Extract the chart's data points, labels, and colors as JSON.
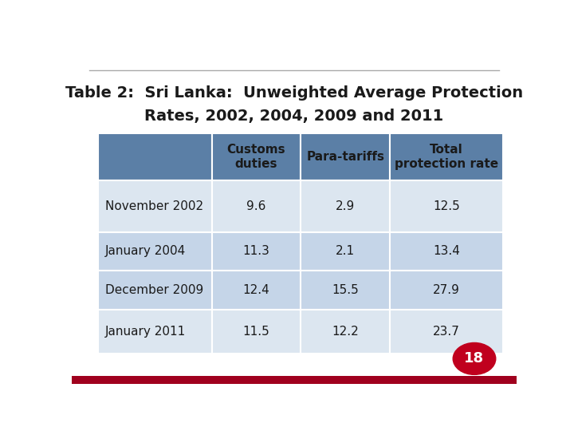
{
  "title_line1": "Table 2:  Sri Lanka:  Unweighted Average Protection",
  "title_line2": "Rates, 2002, 2004, 2009 and 2011",
  "col_headers": [
    "Customs\nduties",
    "Para-tariffs",
    "Total\nprotection rate"
  ],
  "row_labels": [
    "November 2002",
    "January 2004",
    "December 2009",
    "January 2011"
  ],
  "data": [
    [
      "9.6",
      "2.9",
      "12.5"
    ],
    [
      "11.3",
      "2.1",
      "13.4"
    ],
    [
      "12.4",
      "15.5",
      "27.9"
    ],
    [
      "11.5",
      "12.2",
      "23.7"
    ]
  ],
  "header_bg": "#5b7fa6",
  "row_bg_odd": "#dce6f0",
  "row_bg_even": "#c5d5e8",
  "text_color": "#1a1a1a",
  "title_color": "#1a1a1a",
  "background": "#ffffff",
  "bottom_bar_color": "#a0001e",
  "header_text_color": "#1a1a1a",
  "separator_color": "#aaaaaa",
  "badge_color": "#c0001e",
  "badge_number": "18"
}
